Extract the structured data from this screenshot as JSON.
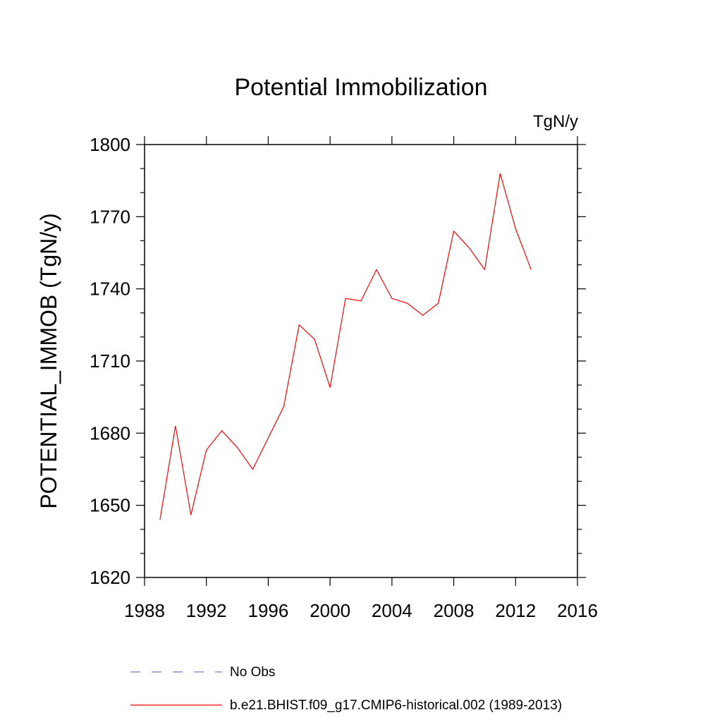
{
  "chart_data": {
    "type": "line",
    "title": "Potential Immobilization",
    "units_label": "TgN/y",
    "xlabel": "",
    "ylabel": "POTENTIAL_IMMOB  (TgN/y)",
    "xlim": [
      1988,
      2016
    ],
    "ylim": [
      1620,
      1800
    ],
    "x_ticks": [
      "1988",
      "1992",
      "1996",
      "2000",
      "2004",
      "2008",
      "2012",
      "2016"
    ],
    "y_ticks": [
      "1620",
      "1650",
      "1680",
      "1710",
      "1740",
      "1770",
      "1800"
    ],
    "grid": false,
    "legend_position": "bottom",
    "legend": [
      {
        "label": "No Obs",
        "color": "#7b78c8",
        "style": "dashed"
      },
      {
        "label": "b.e21.BHIST.f09_g17.CMIP6-historical.002 (1989-2013)",
        "color": "#ff0000",
        "style": "solid"
      }
    ],
    "series": [
      {
        "name": "b.e21.BHIST.f09_g17.CMIP6-historical.002 (1989-2013)",
        "color": "#ff0000",
        "x": [
          1989,
          1990,
          1991,
          1992,
          1993,
          1994,
          1995,
          1996,
          1997,
          1998,
          1999,
          2000,
          2001,
          2002,
          2003,
          2004,
          2005,
          2006,
          2007,
          2008,
          2009,
          2010,
          2011,
          2012,
          2013
        ],
        "values": [
          1644,
          1683,
          1646,
          1673,
          1681,
          1674,
          1665,
          1678,
          1691,
          1725,
          1719,
          1699,
          1736,
          1735,
          1748,
          1736,
          1734,
          1729,
          1734,
          1764,
          1757,
          1748,
          1788,
          1765,
          1748
        ]
      }
    ]
  }
}
